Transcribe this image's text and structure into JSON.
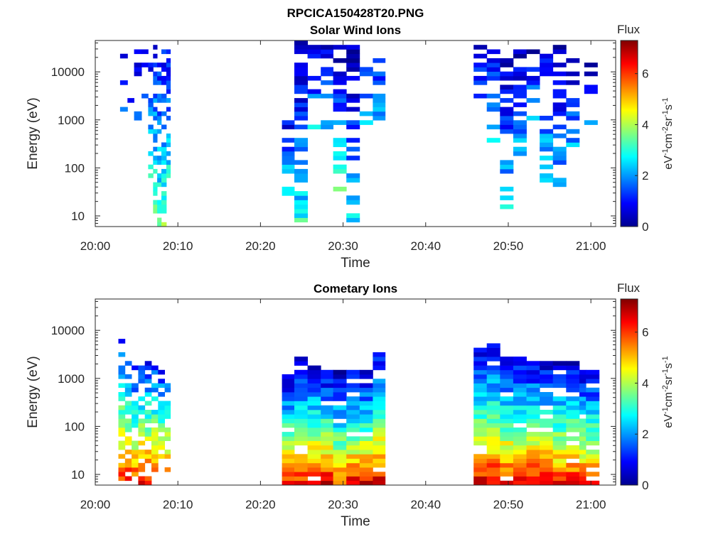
{
  "figure": {
    "title": "RPCICA150428T20.PNG"
  },
  "colormap": [
    "#00008f",
    "#0000ff",
    "#0080ff",
    "#00ffff",
    "#80ff80",
    "#ffff00",
    "#ff8000",
    "#ff0000",
    "#800000"
  ],
  "chart_data": [
    {
      "type": "heatmap",
      "title": "Solar Wind Ions",
      "xlabel": "Time",
      "ylabel": "Energy (eV)",
      "x_ticks": [
        "20:00",
        "20:10",
        "20:20",
        "20:30",
        "20:40",
        "20:50",
        "21:00"
      ],
      "x_tick_minutes": [
        0,
        10,
        20,
        30,
        40,
        50,
        60
      ],
      "xlim_minutes": [
        0,
        63
      ],
      "yscale": "log",
      "ylim": [
        6,
        45000
      ],
      "y_ticks": [
        "10",
        "100",
        "1000",
        "10000"
      ],
      "y_tick_values": [
        10,
        100,
        1000,
        10000
      ],
      "colorbar": {
        "label": "Flux",
        "units": "eV-1cm-2sr-1s-1",
        "range": [
          0,
          7.3
        ],
        "ticks": [
          "0",
          "2",
          "4",
          "6"
        ],
        "tick_values": [
          0,
          2,
          4,
          6
        ]
      },
      "columns": [
        {
          "t0": 3.0,
          "t1": 3.9,
          "emin": 400,
          "emax": 30000,
          "fmin": 0.5,
          "fmax": 2.0,
          "density": 0.2
        },
        {
          "t0": 3.9,
          "t1": 4.7,
          "emin": 400,
          "emax": 30000,
          "fmin": 0.5,
          "fmax": 2.0,
          "density": 0.2
        },
        {
          "t0": 4.7,
          "t1": 5.6,
          "emin": 500,
          "emax": 30000,
          "fmin": 0.5,
          "fmax": 2.0,
          "density": 0.22
        },
        {
          "t0": 5.6,
          "t1": 6.4,
          "emin": 1000,
          "emax": 35000,
          "fmin": 0.5,
          "fmax": 2.2,
          "density": 0.25
        },
        {
          "t0": 6.4,
          "t1": 7.0,
          "emin": 60,
          "emax": 40000,
          "fmin": 0.8,
          "fmax": 3.0,
          "density": 0.45
        },
        {
          "t0": 7.0,
          "t1": 7.5,
          "emin": 6,
          "emax": 40000,
          "fmin": 0.8,
          "fmax": 4.0,
          "density": 0.55
        },
        {
          "t0": 7.5,
          "t1": 8.0,
          "emin": 6,
          "emax": 40000,
          "fmin": 0.8,
          "fmax": 3.5,
          "density": 0.6
        },
        {
          "t0": 8.0,
          "t1": 8.6,
          "emin": 6,
          "emax": 40000,
          "fmin": 0.8,
          "fmax": 3.8,
          "density": 0.65
        },
        {
          "t0": 8.6,
          "t1": 9.1,
          "emin": 20,
          "emax": 40000,
          "fmin": 0.8,
          "fmax": 3.5,
          "density": 0.6
        },
        {
          "t0": 22.6,
          "t1": 24.1,
          "emin": 25,
          "emax": 1200,
          "fmin": 0.6,
          "fmax": 3.5,
          "density": 0.55
        },
        {
          "t0": 24.1,
          "t1": 25.7,
          "emin": 8,
          "emax": 45000,
          "fmin": 0.2,
          "fmax": 3.0,
          "density": 0.7
        },
        {
          "t0": 25.7,
          "t1": 27.3,
          "emin": 600,
          "emax": 40000,
          "fmin": 0.5,
          "fmax": 2.5,
          "density": 0.35
        },
        {
          "t0": 27.3,
          "t1": 28.8,
          "emin": 700,
          "emax": 40000,
          "fmin": 0.5,
          "fmax": 2.5,
          "density": 0.35
        },
        {
          "t0": 28.8,
          "t1": 30.4,
          "emin": 30,
          "emax": 40000,
          "fmin": 0.2,
          "fmax": 3.5,
          "density": 0.6
        },
        {
          "t0": 30.4,
          "t1": 32.0,
          "emin": 7,
          "emax": 40000,
          "fmin": 0.2,
          "fmax": 2.5,
          "density": 0.65
        },
        {
          "t0": 32.0,
          "t1": 33.6,
          "emin": 800,
          "emax": 30000,
          "fmin": 0.5,
          "fmax": 2.5,
          "density": 0.35
        },
        {
          "t0": 33.6,
          "t1": 35.1,
          "emin": 600,
          "emax": 40000,
          "fmin": 0.5,
          "fmax": 2.8,
          "density": 0.5
        },
        {
          "t0": 45.8,
          "t1": 47.4,
          "emin": 1000,
          "emax": 40000,
          "fmin": 0.5,
          "fmax": 2.5,
          "density": 0.3
        },
        {
          "t0": 47.4,
          "t1": 49.0,
          "emin": 300,
          "emax": 40000,
          "fmin": 0.5,
          "fmax": 3.0,
          "density": 0.45
        },
        {
          "t0": 49.0,
          "t1": 50.6,
          "emin": 15,
          "emax": 20000,
          "fmin": 0.5,
          "fmax": 2.8,
          "density": 0.5
        },
        {
          "t0": 50.6,
          "t1": 52.2,
          "emin": 150,
          "emax": 40000,
          "fmin": 0.2,
          "fmax": 2.5,
          "density": 0.55
        },
        {
          "t0": 52.2,
          "t1": 53.8,
          "emin": 600,
          "emax": 30000,
          "fmin": 0.5,
          "fmax": 2.8,
          "density": 0.45
        },
        {
          "t0": 53.8,
          "t1": 55.4,
          "emin": 50,
          "emax": 30000,
          "fmin": 0.5,
          "fmax": 3.0,
          "density": 0.5
        },
        {
          "t0": 55.4,
          "t1": 57.0,
          "emin": 20,
          "emax": 40000,
          "fmin": 0.3,
          "fmax": 2.5,
          "density": 0.55
        },
        {
          "t0": 57.0,
          "t1": 58.6,
          "emin": 300,
          "emax": 40000,
          "fmin": 0.2,
          "fmax": 2.2,
          "density": 0.55
        },
        {
          "t0": 59.2,
          "t1": 60.8,
          "emin": 800,
          "emax": 30000,
          "fmin": 0.3,
          "fmax": 2.2,
          "density": 0.4
        }
      ]
    },
    {
      "type": "heatmap",
      "title": "Cometary Ions",
      "xlabel": "Time",
      "ylabel": "Energy (eV)",
      "x_ticks": [
        "20:00",
        "20:10",
        "20:20",
        "20:30",
        "20:40",
        "20:50",
        "21:00"
      ],
      "x_tick_minutes": [
        0,
        10,
        20,
        30,
        40,
        50,
        60
      ],
      "xlim_minutes": [
        0,
        63
      ],
      "yscale": "log",
      "ylim": [
        6,
        45000
      ],
      "y_ticks": [
        "10",
        "100",
        "1000",
        "10000"
      ],
      "y_tick_values": [
        10,
        100,
        1000,
        10000
      ],
      "colorbar": {
        "label": "Flux",
        "units": "eV-1cm-2sr-1s-1",
        "range": [
          0,
          7.3
        ],
        "ticks": [
          "0",
          "2",
          "4",
          "6"
        ],
        "tick_values": [
          0,
          2,
          4,
          6
        ]
      },
      "columns": [
        {
          "t0": 2.8,
          "t1": 3.6,
          "emin": 6,
          "emax": 7000,
          "fmin": 1.0,
          "fmax": 6.5,
          "density": 0.6
        },
        {
          "t0": 3.6,
          "t1": 4.4,
          "emin": 6,
          "emax": 2500,
          "fmin": 1.0,
          "fmax": 7.0,
          "density": 0.65
        },
        {
          "t0": 4.4,
          "t1": 5.2,
          "emin": 6,
          "emax": 2000,
          "fmin": 1.0,
          "fmax": 6.5,
          "density": 0.65
        },
        {
          "t0": 5.2,
          "t1": 6.0,
          "emin": 6,
          "emax": 2000,
          "fmin": 1.0,
          "fmax": 7.0,
          "density": 0.65
        },
        {
          "t0": 6.0,
          "t1": 6.8,
          "emin": 6,
          "emax": 2500,
          "fmin": 1.0,
          "fmax": 6.8,
          "density": 0.6
        },
        {
          "t0": 6.8,
          "t1": 7.6,
          "emin": 6,
          "emax": 2000,
          "fmin": 1.0,
          "fmax": 7.0,
          "density": 0.65
        },
        {
          "t0": 7.6,
          "t1": 8.4,
          "emin": 6,
          "emax": 1500,
          "fmin": 1.0,
          "fmax": 7.0,
          "density": 0.65
        },
        {
          "t0": 8.4,
          "t1": 9.1,
          "emin": 10,
          "emax": 1500,
          "fmin": 1.0,
          "fmax": 6.0,
          "density": 0.6
        },
        {
          "t0": 22.6,
          "t1": 24.1,
          "emin": 6,
          "emax": 1200,
          "fmin": 0.5,
          "fmax": 6.8,
          "density": 0.9
        },
        {
          "t0": 24.1,
          "t1": 25.7,
          "emin": 6,
          "emax": 2800,
          "fmin": 0.5,
          "fmax": 6.5,
          "density": 0.9
        },
        {
          "t0": 25.7,
          "t1": 27.3,
          "emin": 6,
          "emax": 2000,
          "fmin": 0.5,
          "fmax": 6.8,
          "density": 0.9
        },
        {
          "t0": 27.3,
          "t1": 28.8,
          "emin": 6,
          "emax": 1400,
          "fmin": 0.5,
          "fmax": 7.1,
          "density": 0.9
        },
        {
          "t0": 28.8,
          "t1": 30.4,
          "emin": 6,
          "emax": 1400,
          "fmin": 0.5,
          "fmax": 6.0,
          "density": 0.9
        },
        {
          "t0": 30.4,
          "t1": 32.0,
          "emin": 6,
          "emax": 1500,
          "fmin": 0.5,
          "fmax": 6.8,
          "density": 0.9
        },
        {
          "t0": 32.0,
          "t1": 33.6,
          "emin": 6,
          "emax": 1500,
          "fmin": 0.5,
          "fmax": 6.8,
          "density": 0.9
        },
        {
          "t0": 33.6,
          "t1": 35.1,
          "emin": 6,
          "emax": 4500,
          "fmin": 0.5,
          "fmax": 7.0,
          "density": 0.9
        },
        {
          "t0": 45.8,
          "t1": 47.4,
          "emin": 6,
          "emax": 4200,
          "fmin": 0.5,
          "fmax": 7.0,
          "density": 0.9
        },
        {
          "t0": 47.4,
          "t1": 49.0,
          "emin": 6,
          "emax": 5300,
          "fmin": 0.5,
          "fmax": 7.0,
          "density": 0.9
        },
        {
          "t0": 49.0,
          "t1": 50.6,
          "emin": 6,
          "emax": 2800,
          "fmin": 0.5,
          "fmax": 6.8,
          "density": 0.9
        },
        {
          "t0": 50.6,
          "t1": 52.2,
          "emin": 6,
          "emax": 2800,
          "fmin": 0.5,
          "fmax": 6.8,
          "density": 0.9
        },
        {
          "t0": 52.2,
          "t1": 53.8,
          "emin": 6,
          "emax": 2500,
          "fmin": 0.5,
          "fmax": 7.0,
          "density": 0.9
        },
        {
          "t0": 53.8,
          "t1": 55.4,
          "emin": 6,
          "emax": 2500,
          "fmin": 0.5,
          "fmax": 6.8,
          "density": 0.9
        },
        {
          "t0": 55.4,
          "t1": 57.0,
          "emin": 6,
          "emax": 2300,
          "fmin": 0.5,
          "fmax": 6.5,
          "density": 0.9
        },
        {
          "t0": 57.0,
          "t1": 58.6,
          "emin": 6,
          "emax": 2300,
          "fmin": 0.5,
          "fmax": 6.8,
          "density": 0.9
        },
        {
          "t0": 58.6,
          "t1": 59.4,
          "emin": 6,
          "emax": 1500,
          "fmin": 0.5,
          "fmax": 6.5,
          "density": 0.9
        },
        {
          "t0": 59.4,
          "t1": 61.0,
          "emin": 6,
          "emax": 1500,
          "fmin": 0.5,
          "fmax": 6.5,
          "density": 0.9
        }
      ]
    }
  ]
}
